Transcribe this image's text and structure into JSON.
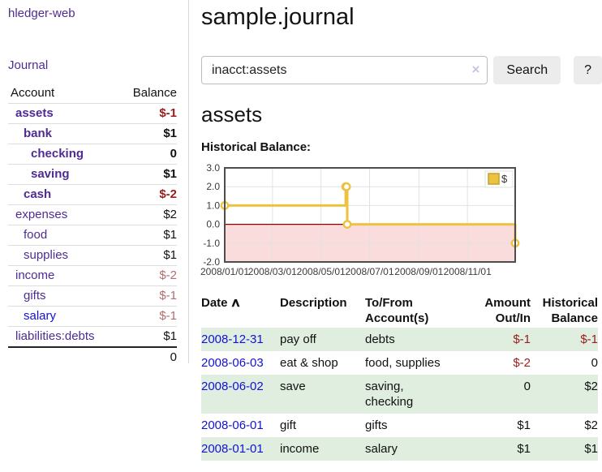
{
  "sidebar": {
    "app_title": "hledger-web",
    "journal_link": "Journal",
    "accounts": {
      "account_header": "Account",
      "balance_header": "Balance",
      "rows": [
        {
          "name": "assets",
          "balance": "$-1",
          "indent": 1,
          "bold": true,
          "neg": "strong"
        },
        {
          "name": "bank",
          "balance": "$1",
          "indent": 2,
          "bold": true
        },
        {
          "name": "checking",
          "balance": "0",
          "indent": 3,
          "bold": true
        },
        {
          "name": "saving",
          "balance": "$1",
          "indent": 3,
          "bold": true
        },
        {
          "name": "cash",
          "balance": "$-2",
          "indent": 2,
          "bold": true,
          "neg": "strong"
        },
        {
          "name": "expenses",
          "balance": "$2",
          "indent": 1
        },
        {
          "name": "food",
          "balance": "$1",
          "indent": 2
        },
        {
          "name": "supplies",
          "balance": "$1",
          "indent": 2
        },
        {
          "name": "income",
          "balance": "$-2",
          "indent": 1,
          "neg": "soft"
        },
        {
          "name": "gifts",
          "balance": "$-1",
          "indent": 2,
          "neg": "soft"
        },
        {
          "name": "salary",
          "balance": "$-1",
          "indent": 2,
          "neg": "soft",
          "link": "blue"
        },
        {
          "name": "liabilities:debts",
          "balance": "$1",
          "indent": 1
        }
      ],
      "total": "0"
    }
  },
  "main": {
    "title": "sample.journal",
    "search": {
      "value": "inacct:assets",
      "clear_icon": "×",
      "search_label": "Search",
      "help_label": "?"
    },
    "account_heading": "assets",
    "chart_label": "Historical Balance:"
  },
  "chart_data": {
    "type": "line",
    "step": true,
    "title": "Historical Balance",
    "series": [
      {
        "name": "$",
        "color": "#edc240",
        "points": [
          [
            "2008-01-01",
            1
          ],
          [
            "2008-06-01",
            2
          ],
          [
            "2008-06-02",
            2
          ],
          [
            "2008-06-03",
            0
          ],
          [
            "2008-12-31",
            -1
          ]
        ]
      }
    ],
    "xlim": [
      "2008-01-01",
      "2008-12-31"
    ],
    "ylim": [
      -2,
      3
    ],
    "x_ticks": [
      "2008/01/01",
      "2008/03/01",
      "2008/05/01",
      "2008/07/01",
      "2008/09/01",
      "2008/11/01"
    ],
    "y_ticks": [
      "3.0",
      "2.0",
      "1.0",
      "0.0",
      "-1.0",
      "-2.0"
    ],
    "legend_position": "top-right",
    "grid": true,
    "below_zero_fill": "#fadcdc",
    "zero_line_color": "#8b0000",
    "marker_fill": "#ffffff"
  },
  "register": {
    "headers": {
      "date": "Date",
      "description": "Description",
      "accounts": "To/From Account(s)",
      "amount": "Amount Out/In",
      "balance": "Historical Balance"
    },
    "sort_icon": "∧",
    "rows": [
      {
        "date": "2008-12-31",
        "description": "pay off",
        "accounts": "debts",
        "amount": "$-1",
        "balance": "$-1"
      },
      {
        "date": "2008-06-03",
        "description": "eat & shop",
        "accounts": "food, supplies",
        "amount": "$-2",
        "balance": "0"
      },
      {
        "date": "2008-06-02",
        "description": "save",
        "accounts": "saving, checking",
        "amount": "0",
        "balance": "$2"
      },
      {
        "date": "2008-06-01",
        "description": "gift",
        "accounts": "gifts",
        "amount": "$1",
        "balance": "$2"
      },
      {
        "date": "2008-01-01",
        "description": "income",
        "accounts": "salary",
        "amount": "$1",
        "balance": "$1"
      }
    ]
  },
  "colors": {
    "accent_purple": "#4f2b93",
    "link_blue": "#1212d6",
    "negative_strong": "#9a1c1c",
    "negative_soft": "#b36d6d",
    "row_stripe_green": "#dfeede",
    "chart_line_yellow": "#edc240"
  }
}
